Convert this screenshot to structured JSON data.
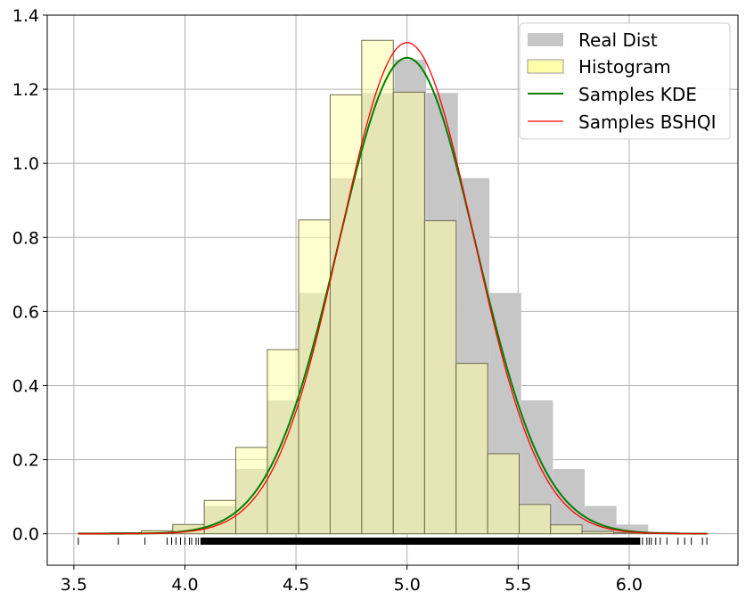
{
  "chart_data": {
    "type": "area",
    "xlim": [
      3.38,
      6.49
    ],
    "ylim": [
      -0.085,
      1.4
    ],
    "grid": true,
    "x_ticks": [
      3.5,
      4.0,
      4.5,
      5.0,
      5.5,
      6.0
    ],
    "x_tick_labels": [
      "3.5",
      "4.0",
      "4.5",
      "5.0",
      "5.5",
      "6.0"
    ],
    "y_ticks": [
      0.0,
      0.2,
      0.4,
      0.6,
      0.8,
      1.0,
      1.2,
      1.4
    ],
    "y_tick_labels": [
      "0.0",
      "0.2",
      "0.4",
      "0.6",
      "0.8",
      "1.0",
      "1.2",
      "1.4"
    ],
    "legend_position": "top-right",
    "legend": [
      {
        "label": "Real Dist",
        "kind": "patch",
        "color": "#c6c6c6"
      },
      {
        "label": "Histogram",
        "kind": "patch",
        "color": "#ffffaa"
      },
      {
        "label": "Samples KDE",
        "kind": "line",
        "color": "#008000"
      },
      {
        "label": "Samples BSHQI",
        "kind": "line",
        "color": "#ff0000"
      }
    ],
    "real_dist": {
      "bin_edges": [
        3.8,
        3.943,
        4.086,
        4.229,
        4.371,
        4.514,
        4.657,
        4.8,
        4.943,
        5.086,
        5.229,
        5.371,
        5.514,
        5.657,
        5.8,
        5.943,
        6.086,
        6.229
      ],
      "values": [
        0.005,
        0.025,
        0.075,
        0.175,
        0.36,
        0.65,
        0.96,
        1.19,
        1.28,
        1.19,
        0.96,
        0.65,
        0.36,
        0.175,
        0.075,
        0.025,
        0.005
      ],
      "color": "#c6c6c6"
    },
    "histogram": {
      "bin_edges": [
        3.52,
        3.662,
        3.804,
        3.945,
        4.087,
        4.229,
        4.371,
        4.512,
        4.654,
        4.796,
        4.938,
        5.079,
        5.221,
        5.363,
        5.505,
        5.646,
        5.788,
        5.93,
        6.072,
        6.213,
        6.355
      ],
      "values": [
        0.002,
        0.003,
        0.008,
        0.025,
        0.09,
        0.233,
        0.497,
        0.847,
        1.185,
        1.332,
        1.192,
        0.845,
        0.46,
        0.216,
        0.079,
        0.024,
        0.006,
        0.003,
        0.002,
        0.001
      ],
      "color": "#ffffaa"
    },
    "series": [
      {
        "name": "Samples KDE",
        "mean": 5.0,
        "std": 0.31,
        "peak": 1.285,
        "x_range": [
          3.52,
          6.35
        ],
        "color": "#008000"
      },
      {
        "name": "Samples BSHQI",
        "mean": 5.0,
        "std": 0.3,
        "peak": 1.326,
        "x_range": [
          3.52,
          6.35
        ],
        "color": "#ff0000"
      }
    ],
    "rug": {
      "y": -0.02,
      "x_sparse": [
        3.52,
        3.7,
        3.82,
        3.92,
        3.94,
        3.96,
        3.98,
        4.0,
        4.02,
        4.03,
        4.05,
        4.06,
        6.06,
        6.08,
        6.09,
        6.1,
        6.12,
        6.14,
        6.17,
        6.22,
        6.25,
        6.28,
        6.33,
        6.35
      ],
      "dense_range": [
        4.07,
        6.05
      ]
    }
  }
}
